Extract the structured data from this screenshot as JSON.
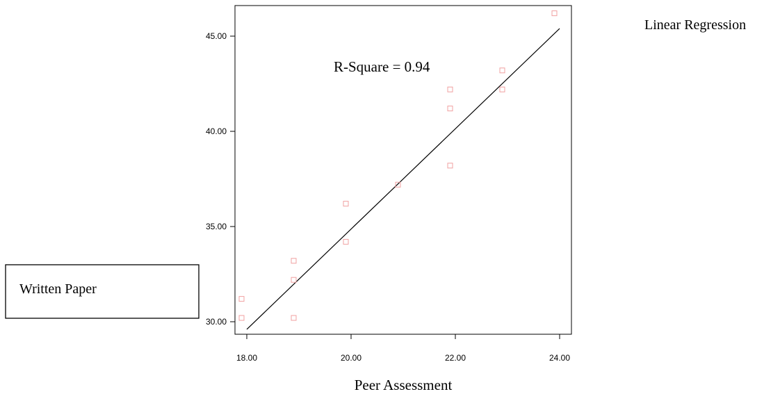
{
  "chart_data": {
    "type": "scatter",
    "title": "Linear Regression",
    "xlabel": "Peer Assessment",
    "ylabel": "Written Paper",
    "annotation": "R-Square = 0.94",
    "xlim": [
      17.9,
      24.2
    ],
    "ylim": [
      29.5,
      46.5
    ],
    "x_ticks": [
      "18.00",
      "20.00",
      "22.00",
      "24.00"
    ],
    "y_ticks": [
      "30.00",
      "35.00",
      "40.00",
      "45.00"
    ],
    "grid": false,
    "points": [
      {
        "x": 17.9,
        "y": 31.2
      },
      {
        "x": 17.9,
        "y": 30.2
      },
      {
        "x": 18.9,
        "y": 33.2
      },
      {
        "x": 18.9,
        "y": 32.2
      },
      {
        "x": 18.9,
        "y": 30.2
      },
      {
        "x": 19.9,
        "y": 36.2
      },
      {
        "x": 19.9,
        "y": 34.2
      },
      {
        "x": 20.9,
        "y": 37.2
      },
      {
        "x": 21.9,
        "y": 42.2
      },
      {
        "x": 21.9,
        "y": 41.2
      },
      {
        "x": 21.9,
        "y": 38.2
      },
      {
        "x": 22.9,
        "y": 43.2
      },
      {
        "x": 22.9,
        "y": 42.2
      },
      {
        "x": 23.9,
        "y": 46.2
      }
    ],
    "regression_line": [
      [
        18.0,
        29.6
      ],
      [
        24.0,
        45.4
      ]
    ],
    "colors": {
      "points": "#f0a0a0",
      "line": "#000000"
    }
  }
}
